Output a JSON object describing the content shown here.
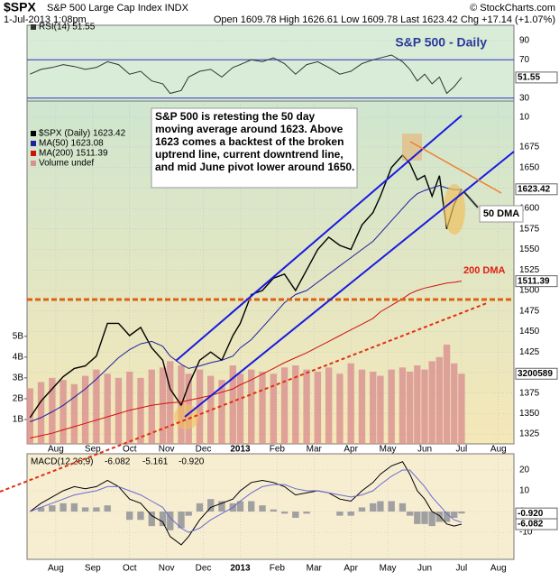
{
  "header": {
    "symbol": "$SPX",
    "name": "S&P 500 Large Cap Index INDX",
    "credit": "© StockCharts.com",
    "date": "1-Jul-2013 1:08pm",
    "quote": "Open 1609.78 High 1626.61 Low 1609.78 Last 1623.42 Chg +17.14 (+1.07%)"
  },
  "chart_data": [
    {
      "type": "line",
      "title": "S&P 500 - Daily",
      "legend": "RSI(14) 51.55",
      "x": [
        0.3,
        0.6,
        0.9,
        1.2,
        1.5,
        1.8,
        2.1,
        2.4,
        2.7,
        3.0,
        3.3,
        3.6,
        3.9,
        4.1,
        4.4,
        4.6,
        4.9,
        5.2,
        5.5,
        5.8,
        6.0,
        6.3,
        6.6,
        6.9,
        7.2,
        7.5,
        7.8,
        8.1,
        8.4,
        8.7,
        9.0,
        9.3,
        9.6,
        9.8,
        10.1,
        10.4,
        10.6,
        10.8,
        11.0,
        11.2,
        11.4,
        11.6,
        11.8,
        12.0
      ],
      "xlim": [
        0.22,
        13.42
      ],
      "series": [
        {
          "name": "RSI(14)",
          "color": "#333333",
          "values": [
            55,
            60,
            62,
            65,
            63,
            60,
            62,
            68,
            65,
            55,
            58,
            48,
            45,
            35,
            38,
            52,
            58,
            60,
            52,
            62,
            65,
            70,
            68,
            72,
            66,
            55,
            65,
            68,
            62,
            55,
            58,
            66,
            70,
            72,
            75,
            68,
            60,
            48,
            55,
            45,
            52,
            35,
            42,
            51.55
          ]
        }
      ],
      "ylim": [
        27,
        106
      ],
      "yticks": [
        90,
        70,
        30,
        10
      ],
      "levels": [
        70,
        30
      ],
      "last_label": "51.55"
    },
    {
      "type": "line",
      "legend": [
        "$SPX (Daily) 1623.42",
        "MA(50) 1623.08",
        "MA(200) 1511.39",
        "Volume undef"
      ],
      "x": [
        0.3,
        0.6,
        0.9,
        1.2,
        1.5,
        1.8,
        2.1,
        2.4,
        2.7,
        3.0,
        3.3,
        3.6,
        3.9,
        4.1,
        4.4,
        4.6,
        4.9,
        5.2,
        5.5,
        5.8,
        6.0,
        6.3,
        6.6,
        6.9,
        7.2,
        7.5,
        7.8,
        8.1,
        8.4,
        8.7,
        9.0,
        9.3,
        9.6,
        9.8,
        10.1,
        10.4,
        10.6,
        10.8,
        11.0,
        11.2,
        11.4,
        11.6,
        11.8,
        12.0
      ],
      "xlim": [
        0.22,
        13.42
      ],
      "xticks": [
        {
          "value": 1,
          "label": "Aug"
        },
        {
          "value": 2,
          "label": "Sep"
        },
        {
          "value": 3,
          "label": "Oct"
        },
        {
          "value": 4,
          "label": "Nov"
        },
        {
          "value": 5,
          "label": "Dec"
        },
        {
          "value": 6,
          "label": "2013"
        },
        {
          "value": 7,
          "label": "Feb"
        },
        {
          "value": 8,
          "label": "Mar"
        },
        {
          "value": 9,
          "label": "Apr"
        },
        {
          "value": 10,
          "label": "May"
        },
        {
          "value": 11,
          "label": "Jun"
        },
        {
          "value": 12,
          "label": "Jul"
        },
        {
          "value": 13,
          "label": "Aug"
        }
      ],
      "series": [
        {
          "name": "$SPX (Daily)",
          "color": "#000000",
          "values": [
            1345,
            1365,
            1380,
            1395,
            1405,
            1408,
            1420,
            1460,
            1460,
            1445,
            1455,
            1430,
            1415,
            1380,
            1360,
            1385,
            1415,
            1425,
            1415,
            1445,
            1460,
            1495,
            1500,
            1515,
            1520,
            1500,
            1525,
            1550,
            1565,
            1555,
            1550,
            1580,
            1595,
            1615,
            1650,
            1665,
            1655,
            1635,
            1640,
            1615,
            1640,
            1575,
            1605,
            1623.42
          ]
        },
        {
          "name": "MA(50)",
          "color": "#1f1f9f",
          "values": [
            1340,
            1345,
            1352,
            1360,
            1370,
            1380,
            1392,
            1405,
            1418,
            1428,
            1435,
            1438,
            1432,
            1420,
            1410,
            1405,
            1408,
            1412,
            1415,
            1420,
            1430,
            1440,
            1455,
            1470,
            1485,
            1495,
            1500,
            1510,
            1520,
            1530,
            1540,
            1550,
            1560,
            1570,
            1585,
            1600,
            1610,
            1618,
            1622,
            1625,
            1628,
            1625,
            1623,
            1623.08
          ]
        },
        {
          "name": "MA(200)",
          "color": "#d01010",
          "values": [
            1320,
            1323,
            1326,
            1330,
            1334,
            1338,
            1342,
            1346,
            1350,
            1354,
            1357,
            1360,
            1362,
            1363,
            1364,
            1366,
            1369,
            1372,
            1376,
            1380,
            1385,
            1391,
            1398,
            1405,
            1412,
            1418,
            1424,
            1431,
            1438,
            1445,
            1452,
            1459,
            1466,
            1474,
            1482,
            1490,
            1496,
            1500,
            1503,
            1505,
            1507,
            1509,
            1510,
            1511.39
          ]
        },
        {
          "name": "Volume",
          "color": "#d99090",
          "axis": "y2",
          "values": [
            2.5,
            2.8,
            3.0,
            2.9,
            2.7,
            3.1,
            3.4,
            3.2,
            3.0,
            3.3,
            3.0,
            3.4,
            3.5,
            3.8,
            3.6,
            3.2,
            3.4,
            3.1,
            2.9,
            3.6,
            3.2,
            3.4,
            3.3,
            3.2,
            3.5,
            3.6,
            3.4,
            3.3,
            3.5,
            3.2,
            3.7,
            3.4,
            3.3,
            3.1,
            3.4,
            3.5,
            3.3,
            3.6,
            3.4,
            3.8,
            4.0,
            4.6,
            3.7,
            3.2
          ]
        }
      ],
      "ylim": [
        1313,
        1731
      ],
      "yticks": [
        1325,
        1350,
        1375,
        1400,
        1425,
        1450,
        1475,
        1500,
        1525,
        1550,
        1575,
        1600,
        1625,
        1650,
        1675
      ],
      "y2lim": [
        -0.17,
        16.3
      ],
      "y2ticks": [
        {
          "value": 1,
          "label": "1B"
        },
        {
          "value": 2,
          "label": "2B"
        },
        {
          "value": 3,
          "label": "3B"
        },
        {
          "value": 4,
          "label": "4B"
        },
        {
          "value": 5,
          "label": "5B"
        }
      ],
      "last_labels": [
        "1623.42",
        "1511.39",
        "3200589"
      ],
      "annotations": [
        "S&P 500 is retesting the 50 day moving average around 1623. Above 1623 comes a backtest of the broken uptrend line, current downtrend line, and mid June pivot lower around 1650.",
        "50 DMA",
        "200 DMA"
      ]
    },
    {
      "type": "line",
      "legend": [
        "MACD(12,26,9)",
        "-6.082",
        "-5.161",
        "-0.920"
      ],
      "x": [
        0.3,
        0.6,
        0.9,
        1.2,
        1.5,
        1.8,
        2.1,
        2.4,
        2.7,
        3.0,
        3.3,
        3.6,
        3.9,
        4.1,
        4.4,
        4.6,
        4.9,
        5.2,
        5.5,
        5.8,
        6.0,
        6.3,
        6.6,
        6.9,
        7.2,
        7.5,
        7.8,
        8.1,
        8.4,
        8.7,
        9.0,
        9.3,
        9.6,
        9.8,
        10.1,
        10.4,
        10.6,
        10.8,
        11.0,
        11.2,
        11.4,
        11.6,
        11.8,
        12.0
      ],
      "xlim": [
        0.22,
        13.42
      ],
      "xticks": [
        {
          "value": 1,
          "label": "Aug"
        },
        {
          "value": 2,
          "label": "Sep"
        },
        {
          "value": 3,
          "label": "Oct"
        },
        {
          "value": 4,
          "label": "Nov"
        },
        {
          "value": 5,
          "label": "Dec"
        },
        {
          "value": 6,
          "label": "2013"
        },
        {
          "value": 7,
          "label": "Feb"
        },
        {
          "value": 8,
          "label": "Mar"
        },
        {
          "value": 9,
          "label": "Apr"
        },
        {
          "value": 10,
          "label": "May"
        },
        {
          "value": 11,
          "label": "Jun"
        },
        {
          "value": 12,
          "label": "Jul"
        },
        {
          "value": 13,
          "label": "Aug"
        }
      ],
      "series": [
        {
          "name": "MACD",
          "color": "#000000",
          "values": [
            0,
            4,
            7,
            10,
            12,
            11,
            12,
            15,
            12,
            6,
            4,
            -2,
            -5,
            -12,
            -16,
            -12,
            -4,
            2,
            4,
            6,
            10,
            14,
            15,
            14,
            12,
            8,
            9,
            10,
            9,
            6,
            5,
            10,
            14,
            18,
            22,
            24,
            18,
            10,
            6,
            0,
            -2,
            -6,
            -7,
            -6.082
          ]
        },
        {
          "name": "Signal",
          "color": "#6a6ad0",
          "values": [
            0,
            2,
            4,
            6,
            8,
            9,
            10,
            12,
            12,
            10,
            8,
            5,
            2,
            -3,
            -8,
            -10,
            -8,
            -4,
            -1,
            2,
            5,
            9,
            12,
            13,
            13,
            11,
            10,
            10,
            9,
            8,
            7,
            8,
            10,
            13,
            17,
            20,
            20,
            16,
            12,
            7,
            3,
            -1,
            -4,
            -5.161
          ]
        },
        {
          "name": "Histogram",
          "color": "#a0a0a0",
          "values": [
            0,
            2,
            3,
            4,
            4,
            2,
            2,
            3,
            0,
            -4,
            -4,
            -7,
            -7,
            -9,
            -8,
            -2,
            4,
            6,
            5,
            4,
            5,
            5,
            3,
            1,
            -1,
            -3,
            -1,
            0,
            0,
            -2,
            -2,
            2,
            4,
            5,
            5,
            4,
            -2,
            -6,
            -6,
            -7,
            -5,
            -5,
            -3,
            -0.92
          ]
        }
      ],
      "ylim": [
        -23,
        27.8
      ],
      "yticks": [
        20,
        10,
        0,
        -10
      ],
      "last_labels": [
        "-0.920",
        "-6.082"
      ]
    }
  ]
}
